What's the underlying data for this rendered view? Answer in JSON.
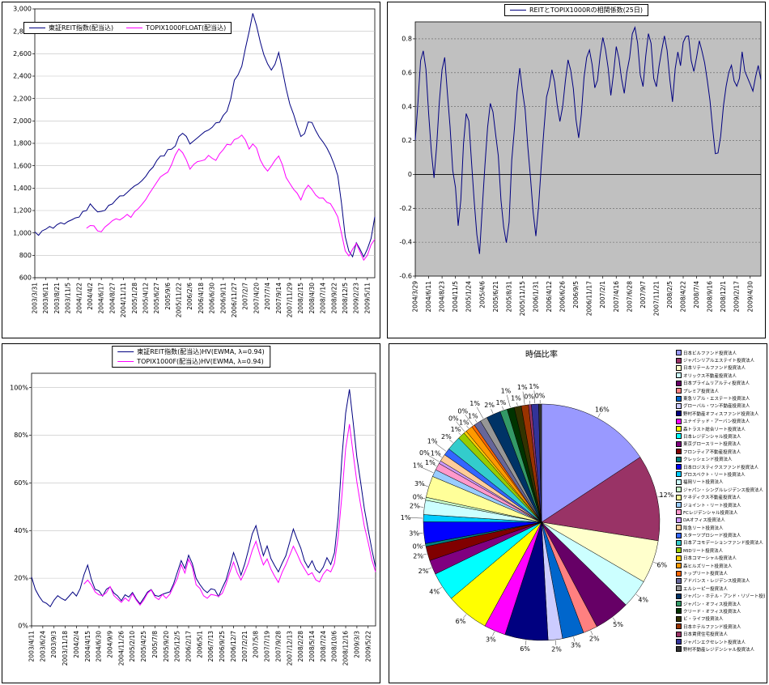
{
  "page": {
    "background": "#FFFFFF"
  },
  "chart_data": [
    {
      "id": "index_chart",
      "type": "line",
      "ylim": [
        600,
        3000
      ],
      "yticks": {
        "min": 600,
        "max": 3000,
        "step": 200,
        "format": "comma"
      },
      "tick_every": 3,
      "plot_bg": "#FFFFFF",
      "grid_color": "#C0C0C0",
      "x_labels": [
        "2003/3/31",
        "2003/6/11",
        "2003/8/21",
        "2003/11/5",
        "2004/1/22",
        "2004/4/2",
        "2004/6/17",
        "2004/8/27",
        "2004/11/11",
        "2005/1/28",
        "2005/4/12",
        "2005/6/27",
        "2005/9/6",
        "2005/11/22",
        "2006/2/6",
        "2006/4/18",
        "2006/6/30",
        "2006/9/11",
        "2006/11/27",
        "2007/2/7",
        "2007/4/20",
        "2007/7/4",
        "2007/9/14",
        "2007/11/29",
        "2008/2/15",
        "2008/4/30",
        "2008/7/14",
        "2008/9/22",
        "2008/12/5",
        "2009/2/23",
        "2009/5/11"
      ],
      "series": [
        {
          "name": "東証REIT指数(配当込)",
          "color": "#000080",
          "values": [
            1000,
            990,
            1010,
            1030,
            1050,
            1040,
            1060,
            1080,
            1070,
            1090,
            1110,
            1130,
            1150,
            1180,
            1210,
            1250,
            1230,
            1200,
            1180,
            1210,
            1240,
            1270,
            1300,
            1320,
            1340,
            1360,
            1390,
            1420,
            1450,
            1480,
            1510,
            1550,
            1600,
            1650,
            1680,
            1700,
            1730,
            1760,
            1780,
            1850,
            1900,
            1860,
            1800,
            1820,
            1850,
            1870,
            1900,
            1920,
            1950,
            1980,
            2000,
            2050,
            2100,
            2200,
            2350,
            2420,
            2500,
            2650,
            2800,
            2950,
            2850,
            2700,
            2600,
            2500,
            2450,
            2500,
            2600,
            2450,
            2300,
            2150,
            2050,
            1950,
            1850,
            1900,
            2000,
            1980,
            1920,
            1850,
            1800,
            1750,
            1700,
            1600,
            1500,
            1250,
            980,
            850,
            780,
            900,
            850,
            800,
            850,
            950,
            1150
          ]
        },
        {
          "name": "TOPIX1000FLOAT(配当込)",
          "color": "#FF00FF",
          "values": [
            null,
            null,
            null,
            null,
            null,
            null,
            null,
            null,
            null,
            null,
            null,
            null,
            null,
            null,
            1050,
            1080,
            1060,
            1030,
            1010,
            1040,
            1080,
            1100,
            1130,
            1110,
            1140,
            1170,
            1150,
            1180,
            1220,
            1260,
            1300,
            1340,
            1400,
            1450,
            1500,
            1520,
            1550,
            1620,
            1700,
            1750,
            1720,
            1650,
            1570,
            1600,
            1650,
            1630,
            1660,
            1700,
            1680,
            1650,
            1700,
            1750,
            1800,
            1780,
            1820,
            1860,
            1870,
            1820,
            1760,
            1800,
            1750,
            1650,
            1600,
            1550,
            1600,
            1650,
            1700,
            1600,
            1500,
            1450,
            1400,
            1350,
            1300,
            1380,
            1420,
            1400,
            1350,
            1320,
            1300,
            1280,
            1250,
            1200,
            1150,
            1000,
            850,
            800,
            850,
            900,
            820,
            760,
            800,
            900,
            950
          ]
        }
      ]
    },
    {
      "id": "correlation_chart",
      "type": "line",
      "ylim": [
        -0.6,
        0.9
      ],
      "yticks": {
        "min": -0.6,
        "max": 0.8,
        "step": 0.2,
        "format": "plain"
      },
      "tick_every": 5,
      "plot_bg": "#C0C0C0",
      "grid_color": "#606060",
      "grid_dash": "2 2",
      "zero_line": true,
      "x_labels": [
        "2004/3/29",
        "2004/6/11",
        "2004/8/23",
        "2004/11/5",
        "2005/1/24",
        "2005/4/6",
        "2005/6/21",
        "2005/8/31",
        "2005/11/15",
        "2006/1/31",
        "2006/4/12",
        "2006/6/26",
        "2006/9/5",
        "2006/11/17",
        "2007/2/1",
        "2007/4/16",
        "2007/6/28",
        "2007/9/7",
        "2007/11/21",
        "2008/2/5",
        "2008/4/22",
        "2008/7/4",
        "2008/9/16",
        "2008/12/1",
        "2009/2/17",
        "2009/4/30"
      ],
      "series": [
        {
          "name": "REITとTOPIX1000Rの相関係数(25日)",
          "color": "#000080",
          "values": [
            0.18,
            0.45,
            0.65,
            0.72,
            0.6,
            0.35,
            0.1,
            -0.05,
            0.15,
            0.4,
            0.6,
            0.68,
            0.5,
            0.25,
            0.05,
            -0.1,
            -0.28,
            -0.12,
            0.15,
            0.38,
            0.3,
            0.1,
            -0.15,
            -0.38,
            -0.45,
            -0.2,
            0.05,
            0.28,
            0.45,
            0.4,
            0.25,
            0.1,
            -0.12,
            -0.3,
            -0.42,
            -0.25,
            0.05,
            0.3,
            0.5,
            0.6,
            0.52,
            0.38,
            0.18,
            -0.02,
            -0.22,
            -0.38,
            -0.2,
            0.05,
            0.28,
            0.45,
            0.55,
            0.62,
            0.58,
            0.42,
            0.28,
            0.42,
            0.58,
            0.68,
            0.62,
            0.48,
            0.32,
            0.2,
            0.38,
            0.55,
            0.68,
            0.72,
            0.62,
            0.5,
            0.58,
            0.7,
            0.78,
            0.72,
            0.6,
            0.5,
            0.62,
            0.74,
            0.7,
            0.55,
            0.45,
            0.58,
            0.7,
            0.8,
            0.84,
            0.74,
            0.62,
            0.55,
            0.68,
            0.8,
            0.76,
            0.6,
            0.5,
            0.64,
            0.75,
            0.8,
            0.7,
            0.55,
            0.45,
            0.6,
            0.72,
            0.66,
            0.75,
            0.84,
            0.8,
            0.7,
            0.6,
            0.7,
            0.8,
            0.74,
            0.64,
            0.55,
            0.45,
            0.3,
            0.15,
            0.1,
            0.25,
            0.4,
            0.52,
            0.6,
            0.66,
            0.56,
            0.5,
            0.6,
            0.7,
            0.64,
            0.58,
            0.54,
            0.5,
            0.55,
            0.62,
            0.56
          ]
        }
      ]
    },
    {
      "id": "hv_chart",
      "type": "line",
      "ylim": [
        0,
        1.06
      ],
      "yticks": {
        "min": 0,
        "max": 1.0,
        "step": 0.2,
        "format": "pct"
      },
      "tick_every": 3,
      "plot_bg": "#FFFFFF",
      "grid_color": "#C0C0C0",
      "x_labels": [
        "2003/4/11",
        "2003/6/24",
        "2003/9/3",
        "2003/11/18",
        "2004/2/4",
        "2004/4/15",
        "2004/6/30",
        "2004/9/9",
        "2004/11/26",
        "2005/2/10",
        "2005/4/25",
        "2005/7/8",
        "2005/9/20",
        "2005/12/5",
        "2006/2/17",
        "2006/5/1",
        "2006/7/13",
        "2006/9/25",
        "2006/12/7",
        "2007/2/21",
        "2007/5/8",
        "2007/7/19",
        "2007/9/28",
        "2007/12/13",
        "2008/2/28",
        "2008/5/14",
        "2008/7/24",
        "2008/10/6",
        "2008/12/16",
        "2009/3/3",
        "2009/5/22"
      ],
      "series": [
        {
          "name": "東証REIT指数(配当込)HV(EWMA, λ=0.94)",
          "color": "#000080",
          "values": [
            0.2,
            0.16,
            0.12,
            0.1,
            0.09,
            0.08,
            0.1,
            0.12,
            0.11,
            0.1,
            0.12,
            0.14,
            0.13,
            0.15,
            0.22,
            0.25,
            0.2,
            0.16,
            0.14,
            0.13,
            0.15,
            0.17,
            0.14,
            0.12,
            0.11,
            0.13,
            0.12,
            0.14,
            0.12,
            0.1,
            0.12,
            0.14,
            0.16,
            0.13,
            0.12,
            0.14,
            0.13,
            0.15,
            0.18,
            0.22,
            0.28,
            0.24,
            0.3,
            0.26,
            0.2,
            0.17,
            0.15,
            0.14,
            0.16,
            0.15,
            0.13,
            0.16,
            0.2,
            0.25,
            0.3,
            0.27,
            0.22,
            0.26,
            0.32,
            0.38,
            0.42,
            0.35,
            0.3,
            0.33,
            0.28,
            0.25,
            0.22,
            0.26,
            0.3,
            0.35,
            0.4,
            0.36,
            0.32,
            0.28,
            0.25,
            0.27,
            0.24,
            0.22,
            0.24,
            0.28,
            0.26,
            0.3,
            0.45,
            0.7,
            0.9,
            1.0,
            0.85,
            0.7,
            0.6,
            0.5,
            0.4,
            0.32,
            0.25
          ]
        },
        {
          "name": "TOPIX1000F(配当込)HV(EWMA, λ=0.94)",
          "color": "#FF00FF",
          "values": [
            null,
            null,
            null,
            null,
            null,
            null,
            null,
            null,
            null,
            null,
            null,
            null,
            null,
            null,
            0.18,
            0.2,
            0.17,
            0.15,
            0.13,
            0.12,
            0.14,
            0.16,
            0.13,
            0.11,
            0.1,
            0.12,
            0.11,
            0.13,
            0.11,
            0.09,
            0.11,
            0.13,
            0.15,
            0.12,
            0.11,
            0.13,
            0.12,
            0.14,
            0.17,
            0.2,
            0.26,
            0.22,
            0.28,
            0.24,
            0.18,
            0.15,
            0.13,
            0.12,
            0.14,
            0.13,
            0.12,
            0.14,
            0.18,
            0.22,
            0.26,
            0.23,
            0.19,
            0.22,
            0.27,
            0.32,
            0.35,
            0.3,
            0.26,
            0.28,
            0.24,
            0.21,
            0.19,
            0.22,
            0.26,
            0.3,
            0.34,
            0.3,
            0.27,
            0.24,
            0.21,
            0.23,
            0.2,
            0.19,
            0.21,
            0.24,
            0.22,
            0.26,
            0.38,
            0.55,
            0.75,
            0.85,
            0.72,
            0.6,
            0.5,
            0.42,
            0.35,
            0.28,
            0.23
          ]
        }
      ]
    },
    {
      "id": "pie_chart",
      "type": "pie",
      "title": "時価比率",
      "slices": [
        {
          "name": "日本ビルファンド投資法人",
          "value": 16,
          "color": "#9999FF"
        },
        {
          "name": "ジャパンリアルエステイト投資法人",
          "value": 12,
          "color": "#993366"
        },
        {
          "name": "日本リテールファンド投資法人",
          "value": 6,
          "color": "#FFFFCC"
        },
        {
          "name": "オリックス不動産投資法人",
          "value": 4,
          "color": "#CCFFFF"
        },
        {
          "name": "日本プライムリアルティ投資法人",
          "value": 5,
          "color": "#660066"
        },
        {
          "name": "プレミア投資法人",
          "value": 2,
          "color": "#FF8080"
        },
        {
          "name": "東急リアル・エステート投資法人",
          "value": 3,
          "color": "#0066CC"
        },
        {
          "name": "グローバル・ワン不動産投資法人",
          "value": 2,
          "color": "#CCCCFF"
        },
        {
          "name": "野村不動産オフィスファンド投資法人",
          "value": 6,
          "color": "#000080"
        },
        {
          "name": "ユナイテッド・アーバン投資法人",
          "value": 3,
          "color": "#FF00FF"
        },
        {
          "name": "森トラスト総合リート投資法人",
          "value": 6,
          "color": "#FFFF00"
        },
        {
          "name": "日本レジデンシャル投資法人",
          "value": 4,
          "color": "#00FFFF"
        },
        {
          "name": "東京グロースリート投資法人",
          "value": 2,
          "color": "#800080"
        },
        {
          "name": "フロンティア不動産投資法人",
          "value": 2,
          "color": "#800000"
        },
        {
          "name": "クレッシェンド投資法人",
          "value": 0.4,
          "color": "#008080"
        },
        {
          "name": "日本ロジスティクスファンド投資法人",
          "value": 3,
          "color": "#0000FF"
        },
        {
          "name": "プロスペクト・リート投資法人",
          "value": 1,
          "color": "#00CCFF"
        },
        {
          "name": "福岡リート投資法人",
          "value": 2,
          "color": "#CCFFFF"
        },
        {
          "name": "ジャパン・シングルレジデンス投資法人",
          "value": 0.4,
          "color": "#CCFFCC"
        },
        {
          "name": "ケネディクス不動産投資法人",
          "value": 3,
          "color": "#FFFF99"
        },
        {
          "name": "ジョイント・リート投資法人",
          "value": 1,
          "color": "#99CCFF"
        },
        {
          "name": "FCレジデンシャル投資法人",
          "value": 1,
          "color": "#FF99CC"
        },
        {
          "name": "DAオフィス投資法人",
          "value": 0.4,
          "color": "#CC99FF"
        },
        {
          "name": "阪急リート投資法人",
          "value": 1,
          "color": "#FFCC99"
        },
        {
          "name": "スターツプロシード投資法人",
          "value": 1,
          "color": "#3366FF"
        },
        {
          "name": "日本アコモデーションファンド投資法人",
          "value": 2,
          "color": "#33CCCC"
        },
        {
          "name": "MIDリート投資法人",
          "value": 1,
          "color": "#99CC00"
        },
        {
          "name": "日本コマーシャル投資法人",
          "value": 0.4,
          "color": "#FFCC00"
        },
        {
          "name": "森ヒルズリート投資法人",
          "value": 1,
          "color": "#FF9900"
        },
        {
          "name": "トップリート投資法人",
          "value": 0.4,
          "color": "#FF6600"
        },
        {
          "name": "アドバンス・レジデンス投資法人",
          "value": 1,
          "color": "#666699"
        },
        {
          "name": "エルシーピー投資法人",
          "value": 1,
          "color": "#969696"
        },
        {
          "name": "ジャパン・ホテル・アンド・リゾート投資法人",
          "value": 2,
          "color": "#003366"
        },
        {
          "name": "ジャパン・オフィス投資法人",
          "value": 1,
          "color": "#339966"
        },
        {
          "name": "クリード・オフィス投資法人",
          "value": 1,
          "color": "#003300"
        },
        {
          "name": "ビ・ライフ投資法人",
          "value": 1,
          "color": "#333300"
        },
        {
          "name": "日本ホテルファンド投資法人",
          "value": 1,
          "color": "#993300"
        },
        {
          "name": "日本賃貸住宅投資法人",
          "value": 0.4,
          "color": "#993366"
        },
        {
          "name": "ジャパンエクセレント投資法人",
          "value": 1,
          "color": "#333399"
        },
        {
          "name": "野村不動産レジデンシャル投資法人",
          "value": 0.4,
          "color": "#333333"
        }
      ]
    }
  ]
}
